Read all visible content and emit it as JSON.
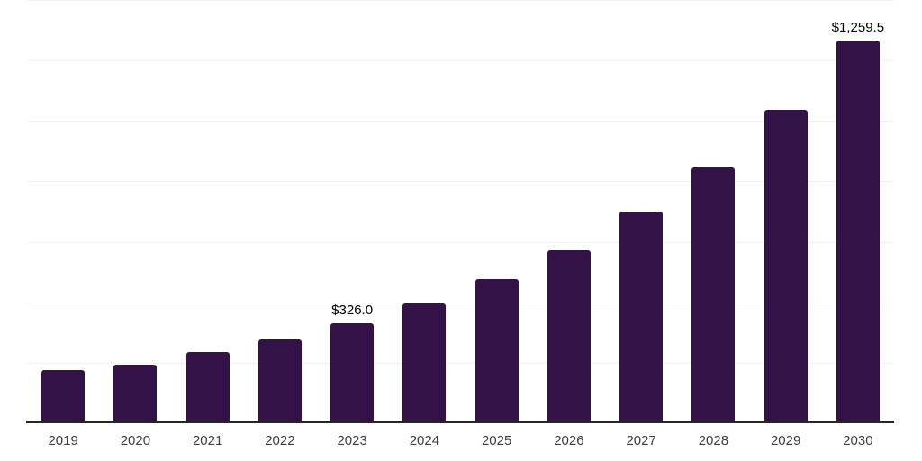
{
  "chart_data": {
    "type": "bar",
    "title": "",
    "xlabel": "",
    "ylabel": "",
    "categories": [
      "2019",
      "2020",
      "2021",
      "2022",
      "2023",
      "2024",
      "2025",
      "2026",
      "2027",
      "2028",
      "2029",
      "2030"
    ],
    "values": [
      171,
      187,
      229,
      271,
      326.0,
      391,
      471,
      567,
      693,
      841,
      1032,
      1259.5
    ],
    "data_labels": [
      "",
      "",
      "",
      "",
      "$326.0",
      "",
      "",
      "",
      "",
      "",
      "",
      "$1,259.5"
    ],
    "ylim": [
      0,
      1400
    ],
    "gridline_interval": 200,
    "grid": true,
    "y_axis_tick_labels_visible": false,
    "legend": "none",
    "colors": {
      "bar": "#341247",
      "grid": "#f2f2f2",
      "axis": "#262626",
      "tick_label": "#3d3d3d",
      "value_label": "#000000"
    }
  }
}
